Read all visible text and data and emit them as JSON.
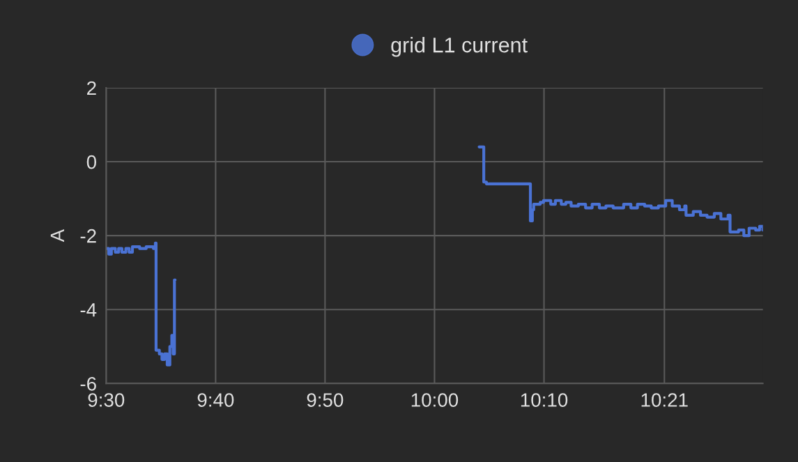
{
  "chart_data": {
    "type": "step",
    "ylabel": "A",
    "legend": "top",
    "grid": true,
    "marker": "none",
    "line_style": "solid",
    "xlim": [
      9.5,
      10.5
    ],
    "ylim": [
      -6,
      2
    ],
    "yticks": [
      -6,
      -4,
      -2,
      0,
      2
    ],
    "xticks": [
      {
        "value": 9.5,
        "label": "9:30"
      },
      {
        "value": 9.6667,
        "label": "9:40"
      },
      {
        "value": 9.8333,
        "label": "9:50"
      },
      {
        "value": 10,
        "label": "10:00"
      },
      {
        "value": 10.1667,
        "label": "10:10"
      },
      {
        "value": 10.35,
        "label": "10:21"
      }
    ],
    "series": [
      {
        "name": "grid L1 current",
        "color": "#4a72d4",
        "x": [
          9.5,
          9.504,
          9.508,
          9.514,
          9.519,
          9.524,
          9.53,
          9.535,
          9.54,
          9.551,
          9.561,
          9.572,
          9.575,
          9.576,
          9.581,
          9.585,
          9.589,
          9.593,
          9.597,
          9.6,
          9.602,
          9.604,
          9.605,
          10.068,
          10.075,
          10.079,
          10.145,
          10.146,
          10.149,
          10.151,
          10.161,
          10.166,
          10.177,
          10.184,
          10.193,
          10.2,
          10.208,
          10.219,
          10.23,
          10.24,
          10.251,
          10.261,
          10.272,
          10.288,
          10.299,
          10.309,
          10.32,
          10.33,
          10.341,
          10.352,
          10.362,
          10.373,
          10.381,
          10.383,
          10.394,
          10.405,
          10.415,
          10.426,
          10.436,
          10.447,
          10.45,
          10.463,
          10.471,
          10.479,
          10.489,
          10.495,
          10.5
        ],
        "values": [
          -2.35,
          -2.5,
          -2.35,
          -2.45,
          -2.35,
          -2.45,
          -2.35,
          -2.45,
          -2.3,
          -2.35,
          -2.3,
          -2.35,
          -2.2,
          -5.1,
          -5.2,
          -5.35,
          -5.2,
          -5.5,
          -5.0,
          -4.7,
          -5.2,
          -3.2,
          null,
          0.4,
          -0.55,
          -0.6,
          -0.6,
          -1.6,
          -1.3,
          -1.15,
          -1.1,
          -1.05,
          -1.15,
          -1.05,
          -1.15,
          -1.1,
          -1.2,
          -1.15,
          -1.25,
          -1.15,
          -1.25,
          -1.2,
          -1.25,
          -1.15,
          -1.25,
          -1.15,
          -1.2,
          -1.25,
          -1.2,
          -1.05,
          -1.2,
          -1.3,
          -1.2,
          -1.45,
          -1.35,
          -1.45,
          -1.5,
          -1.4,
          -1.55,
          -1.45,
          -1.9,
          -1.85,
          -2.0,
          -1.8,
          -1.85,
          -1.75,
          -1.85
        ]
      }
    ]
  }
}
